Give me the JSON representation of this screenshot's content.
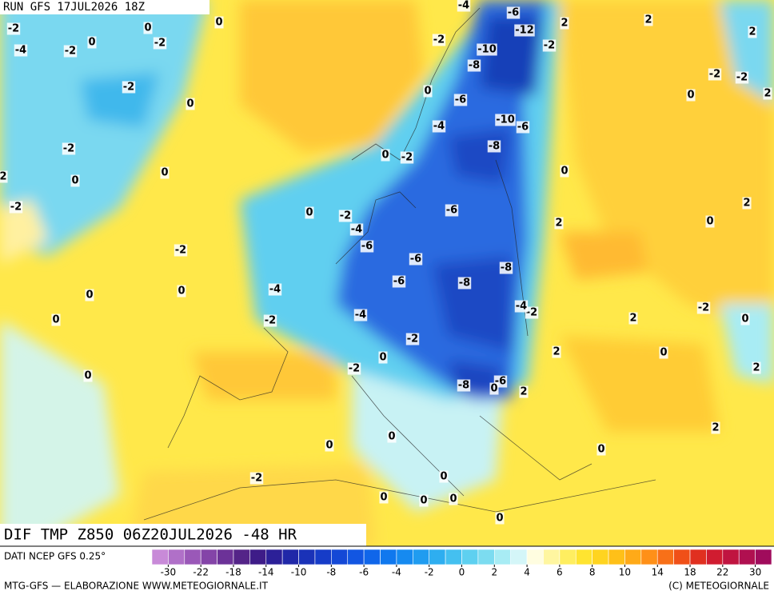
{
  "header": {
    "run": "RUN GFS 17JUL2026 18Z",
    "title": "DIF TMP Z850 06Z20JUL2026 -48 HR"
  },
  "footer": {
    "source": "DATI NCEP GFS 0.25°",
    "credit": "MTG-GFS — ELABORAZIONE WWW.METEOGIORNALE.IT",
    "copyright": "(C) METEOGIORNALE"
  },
  "colorbar": {
    "labels": [
      -30,
      -22,
      -18,
      -14,
      -10,
      -8,
      -6,
      -4,
      -2,
      0,
      2,
      4,
      6,
      8,
      10,
      14,
      18,
      22,
      30
    ],
    "colors": [
      "#c88ad8",
      "#b070c8",
      "#9a58b8",
      "#8444a8",
      "#6c3298",
      "#542488",
      "#3e1c88",
      "#2c2098",
      "#2028a8",
      "#1a32b8",
      "#163cc8",
      "#1448d6",
      "#1256e2",
      "#1066ea",
      "#1078ee",
      "#168af0",
      "#209cf0",
      "#2eaef0",
      "#44c0f0",
      "#5ed0f0",
      "#7cdcf0",
      "#a8ecf4",
      "#d4f6f8",
      "#fffde0",
      "#fff6a0",
      "#ffee60",
      "#ffe430",
      "#ffd420",
      "#ffc018",
      "#ffaa18",
      "#ff9018",
      "#f87018",
      "#f05018",
      "#e03020",
      "#d01c30",
      "#c01440",
      "#b01050",
      "#a00c5c"
    ]
  },
  "contour_labels": [
    -2,
    -4,
    -2,
    0,
    0,
    -2,
    0,
    -2,
    0,
    -2,
    2,
    0,
    0,
    -2,
    -2,
    0,
    0,
    0,
    0,
    -2,
    -4,
    0,
    -2,
    -4,
    -6,
    0,
    -2,
    0,
    -2,
    -4,
    -6,
    -12,
    -2,
    2,
    2,
    -10,
    -8,
    -6,
    -4,
    -10,
    -6,
    -8,
    0,
    -6,
    -6,
    -6,
    -8,
    -8,
    2,
    -2,
    -4,
    -4,
    -2,
    0,
    -2,
    -8,
    -6,
    0,
    2,
    2,
    2,
    0,
    -2,
    0,
    2,
    0,
    2,
    0,
    -2,
    -2,
    2,
    2,
    2,
    0,
    0,
    0,
    0,
    0,
    0,
    0,
    0,
    -2
  ]
}
